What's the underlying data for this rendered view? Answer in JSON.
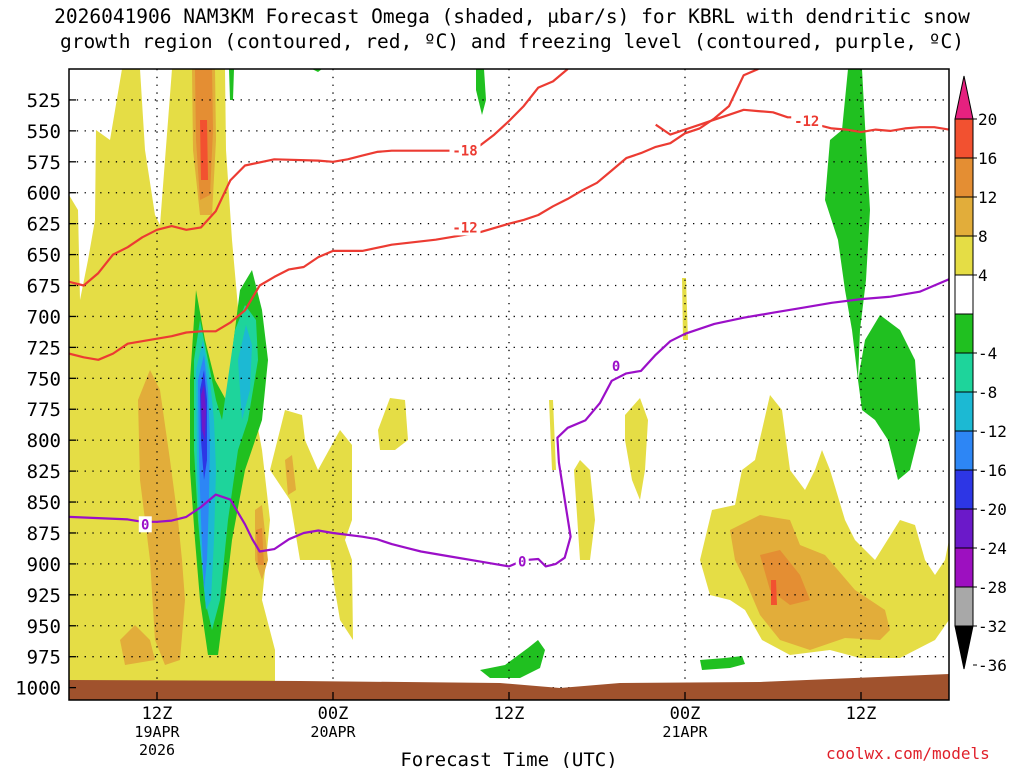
{
  "page": {
    "title_line1": "2026041906 NAM3KM Forecast Omega (shaded, μbar/s) for KBRL with dendritic snow",
    "title_line2": "growth region (contoured, red, ºC) and freezing level (contoured, purple, ºC)",
    "attribution": "coolwx.com/models"
  },
  "chart_data": {
    "type": "time-height cross section",
    "xlabel": "Forecast Time (UTC)",
    "x_range_hours": [
      0,
      60
    ],
    "x_ticks": [
      {
        "hour": 6,
        "line1": "12Z",
        "line2": "19APR",
        "line3": "2026"
      },
      {
        "hour": 18,
        "line1": "00Z",
        "line2": "20APR",
        "line3": ""
      },
      {
        "hour": 30,
        "line1": "12Z",
        "line2": "",
        "line3": ""
      },
      {
        "hour": 42,
        "line1": "00Z",
        "line2": "21APR",
        "line3": ""
      },
      {
        "hour": 54,
        "line1": "12Z",
        "line2": "",
        "line3": ""
      }
    ],
    "y_range_hpa": [
      500,
      1010
    ],
    "y_levels": [
      525,
      550,
      575,
      600,
      625,
      650,
      675,
      700,
      725,
      750,
      775,
      800,
      825,
      850,
      875,
      900,
      925,
      950,
      975,
      1000
    ],
    "colorbar": {
      "labels": [
        "20",
        "16",
        "12",
        "8",
        "4",
        "-4",
        "-8",
        "-12",
        "-16",
        "-20",
        "-24",
        "-28",
        "-32",
        "-36"
      ],
      "bins": [
        {
          "color": "#ffffff",
          "label": "-4 to 4"
        },
        {
          "color": "#e5dd45",
          "label": "4 to 8"
        },
        {
          "color": "#e2ad3a",
          "label": "8 to 12"
        },
        {
          "color": "#e48e33",
          "label": "12 to 16"
        },
        {
          "color": "#f25130",
          "label": "16 to 20"
        },
        {
          "color": "#e6217f",
          "label": "> 20"
        },
        {
          "color": "#20c020",
          "label": "-8 to -4"
        },
        {
          "color": "#1ed49b",
          "label": "-12 to -8"
        },
        {
          "color": "#1cb9d3",
          "label": "-16 to -12"
        },
        {
          "color": "#2d86f5",
          "label": "-20 to -16"
        },
        {
          "color": "#2d36e5",
          "label": "-24 to -20"
        },
        {
          "color": "#6b19c9",
          "label": "-28 to -24"
        },
        {
          "color": "#9d10c0",
          "label": "-32 to -28"
        },
        {
          "color": "#a8a8a8",
          "label": "-36 to -32"
        },
        {
          "color": "#000000",
          "label": "< -36"
        }
      ]
    },
    "contour_labels": [
      {
        "text": "-18",
        "hour": 27.0,
        "hpa": 566
      },
      {
        "text": "-12",
        "hour": 27.0,
        "hpa": 628
      },
      {
        "text": "-12",
        "hour": 50.3,
        "hpa": 542
      },
      {
        "text": "0",
        "hour": 5.2,
        "hpa": 868
      },
      {
        "text": "0",
        "hour": 30.9,
        "hpa": 898
      },
      {
        "text": "0",
        "hour": 37.3,
        "hpa": 740
      }
    ],
    "isotherms_red": [
      {
        "name": "-18C upper",
        "points": [
          [
            0,
            672
          ],
          [
            1,
            675
          ],
          [
            2,
            665
          ],
          [
            3,
            650
          ],
          [
            4,
            644
          ],
          [
            5,
            636
          ],
          [
            6,
            630
          ],
          [
            7,
            627
          ],
          [
            8,
            630
          ],
          [
            9,
            628
          ],
          [
            10,
            615
          ],
          [
            11,
            590
          ],
          [
            12,
            578
          ],
          [
            14,
            573
          ],
          [
            17,
            574
          ],
          [
            18,
            575
          ],
          [
            19,
            573
          ],
          [
            20,
            570
          ],
          [
            21,
            567
          ],
          [
            22,
            566
          ],
          [
            24,
            566
          ],
          [
            27,
            566
          ],
          [
            28,
            562
          ],
          [
            29,
            553
          ],
          [
            30,
            542
          ],
          [
            31,
            530
          ],
          [
            32,
            515
          ],
          [
            33,
            510
          ],
          [
            34,
            500
          ]
        ]
      },
      {
        "name": "-12C upper",
        "points": [
          [
            40,
            545
          ],
          [
            41,
            553
          ],
          [
            42,
            549
          ],
          [
            43,
            545
          ],
          [
            44,
            541
          ],
          [
            45,
            537
          ],
          [
            46,
            533
          ],
          [
            47,
            534
          ],
          [
            48,
            535
          ],
          [
            49,
            539
          ],
          [
            50,
            539
          ],
          [
            51,
            545
          ],
          [
            52,
            548
          ],
          [
            53,
            549
          ],
          [
            54,
            551
          ],
          [
            55,
            549
          ],
          [
            56,
            550
          ],
          [
            57,
            548
          ],
          [
            58,
            547
          ],
          [
            59,
            547
          ],
          [
            60,
            549
          ]
        ]
      },
      {
        "name": "-12C lower",
        "points": [
          [
            0,
            730
          ],
          [
            1,
            733
          ],
          [
            2,
            735
          ],
          [
            3,
            730
          ],
          [
            4,
            722
          ],
          [
            5,
            720
          ],
          [
            6,
            718
          ],
          [
            7,
            716
          ],
          [
            8,
            713
          ],
          [
            9,
            712
          ],
          [
            10,
            712
          ],
          [
            11,
            705
          ],
          [
            12,
            695
          ],
          [
            13,
            675
          ],
          [
            14,
            668
          ],
          [
            15,
            662
          ],
          [
            16,
            660
          ],
          [
            17,
            652
          ],
          [
            18,
            647
          ],
          [
            20,
            647
          ],
          [
            22,
            642
          ],
          [
            25,
            638
          ],
          [
            28,
            632
          ],
          [
            30,
            625
          ],
          [
            31,
            622
          ],
          [
            32,
            618
          ],
          [
            33,
            611
          ],
          [
            34,
            605
          ],
          [
            35,
            598
          ],
          [
            36,
            592
          ],
          [
            37,
            582
          ],
          [
            38,
            572
          ],
          [
            39,
            568
          ],
          [
            40,
            563
          ],
          [
            41,
            560
          ],
          [
            42,
            552
          ],
          [
            43,
            548
          ],
          [
            44,
            540
          ],
          [
            45,
            530
          ],
          [
            46,
            505
          ],
          [
            47,
            500
          ]
        ]
      }
    ],
    "isotherms_purple": [
      {
        "name": "0C freezing level",
        "points": [
          [
            0,
            862
          ],
          [
            2,
            863
          ],
          [
            4,
            864
          ],
          [
            5,
            866
          ],
          [
            6,
            866
          ],
          [
            7,
            865
          ],
          [
            8,
            862
          ],
          [
            9,
            854
          ],
          [
            10,
            844
          ],
          [
            11,
            848
          ],
          [
            12,
            868
          ],
          [
            12.5,
            880
          ],
          [
            13,
            890
          ],
          [
            14,
            888
          ],
          [
            15,
            880
          ],
          [
            16,
            875
          ],
          [
            17,
            873
          ],
          [
            18,
            875
          ],
          [
            20,
            878
          ],
          [
            21,
            880
          ],
          [
            22,
            884
          ],
          [
            23,
            887
          ],
          [
            24,
            890
          ],
          [
            26,
            894
          ],
          [
            28,
            898
          ],
          [
            29,
            900
          ],
          [
            30,
            902
          ],
          [
            31,
            897
          ],
          [
            32,
            896
          ],
          [
            32.5,
            902
          ],
          [
            33.2,
            900
          ],
          [
            33.8,
            895
          ],
          [
            34.2,
            878
          ],
          [
            33.8,
            848
          ],
          [
            33.4,
            818
          ],
          [
            33.3,
            798
          ],
          [
            34,
            790
          ],
          [
            35.2,
            784
          ],
          [
            36.2,
            770
          ],
          [
            37,
            752
          ],
          [
            38,
            746
          ],
          [
            39,
            744
          ],
          [
            40,
            731
          ],
          [
            41,
            720
          ],
          [
            42,
            714
          ],
          [
            44,
            706
          ],
          [
            46,
            701
          ],
          [
            48,
            697
          ],
          [
            50,
            693
          ],
          [
            52,
            689
          ],
          [
            54,
            686
          ],
          [
            56,
            684
          ],
          [
            58,
            680
          ],
          [
            59,
            675
          ],
          [
            60,
            670
          ]
        ]
      }
    ]
  }
}
